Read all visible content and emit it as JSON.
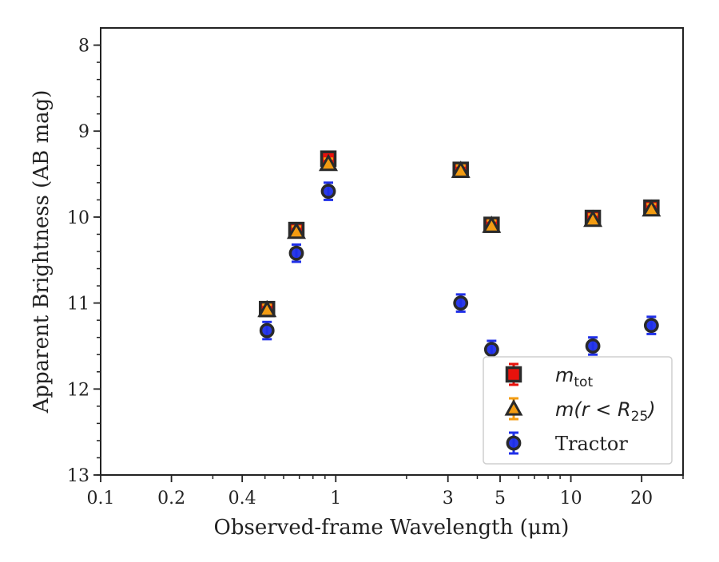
{
  "chart_data": {
    "type": "scatter",
    "title": "",
    "xlabel": "Observed-frame Wavelength (μm)",
    "ylabel": "Apparent Brightness (AB mag)",
    "xscale": "log",
    "xlim": [
      0.1,
      30
    ],
    "ylim": [
      13,
      7.8
    ],
    "y_inverted": true,
    "grid": false,
    "legend_position": "lower-right",
    "x_ticks": [
      0.1,
      0.2,
      0.4,
      1,
      3,
      5,
      10,
      20
    ],
    "x_tick_labels": [
      "0.1",
      "0.2",
      "0.4",
      "1",
      "3",
      "5",
      "10",
      "20"
    ],
    "y_ticks": [
      8,
      9,
      10,
      11,
      12,
      13
    ],
    "y_tick_labels": [
      "8",
      "9",
      "10",
      "11",
      "12",
      "13"
    ],
    "series": [
      {
        "name": "m_tot",
        "legend_html": [
          "m",
          "tot",
          ""
        ],
        "marker": "square",
        "color": "#e8120c",
        "edge_color": "#2a2a2a",
        "points": [
          {
            "x": 0.51,
            "y": 11.07,
            "err": 0.06
          },
          {
            "x": 0.68,
            "y": 10.15,
            "err": 0.06
          },
          {
            "x": 0.93,
            "y": 9.32,
            "err": 0.06
          },
          {
            "x": 3.4,
            "y": 9.45,
            "err": 0.06
          },
          {
            "x": 4.6,
            "y": 10.09,
            "err": 0.06
          },
          {
            "x": 12.4,
            "y": 10.01,
            "err": 0.06
          },
          {
            "x": 22.0,
            "y": 9.89,
            "err": 0.06
          }
        ]
      },
      {
        "name": "m(r < R25)",
        "legend_html": [
          "m(r < R",
          "25",
          ")"
        ],
        "marker": "triangle",
        "color": "#f39c12",
        "edge_color": "#2a2a2a",
        "points": [
          {
            "x": 0.51,
            "y": 11.08,
            "err": 0.06
          },
          {
            "x": 0.68,
            "y": 10.17,
            "err": 0.06
          },
          {
            "x": 0.93,
            "y": 9.38,
            "err": 0.06
          },
          {
            "x": 3.4,
            "y": 9.46,
            "err": 0.06
          },
          {
            "x": 4.6,
            "y": 10.1,
            "err": 0.06
          },
          {
            "x": 12.4,
            "y": 10.03,
            "err": 0.06
          },
          {
            "x": 22.0,
            "y": 9.91,
            "err": 0.06
          }
        ]
      },
      {
        "name": "Tractor",
        "legend_html": [
          "Tractor",
          "",
          ""
        ],
        "marker": "circle",
        "color": "#1f2fe8",
        "edge_color": "#2a2a2a",
        "points": [
          {
            "x": 0.51,
            "y": 11.32,
            "err": 0.1
          },
          {
            "x": 0.68,
            "y": 10.42,
            "err": 0.1
          },
          {
            "x": 0.93,
            "y": 9.7,
            "err": 0.1
          },
          {
            "x": 3.4,
            "y": 11.0,
            "err": 0.1
          },
          {
            "x": 4.6,
            "y": 11.54,
            "err": 0.1
          },
          {
            "x": 12.4,
            "y": 11.5,
            "err": 0.1
          },
          {
            "x": 22.0,
            "y": 11.26,
            "err": 0.1
          }
        ]
      }
    ]
  }
}
